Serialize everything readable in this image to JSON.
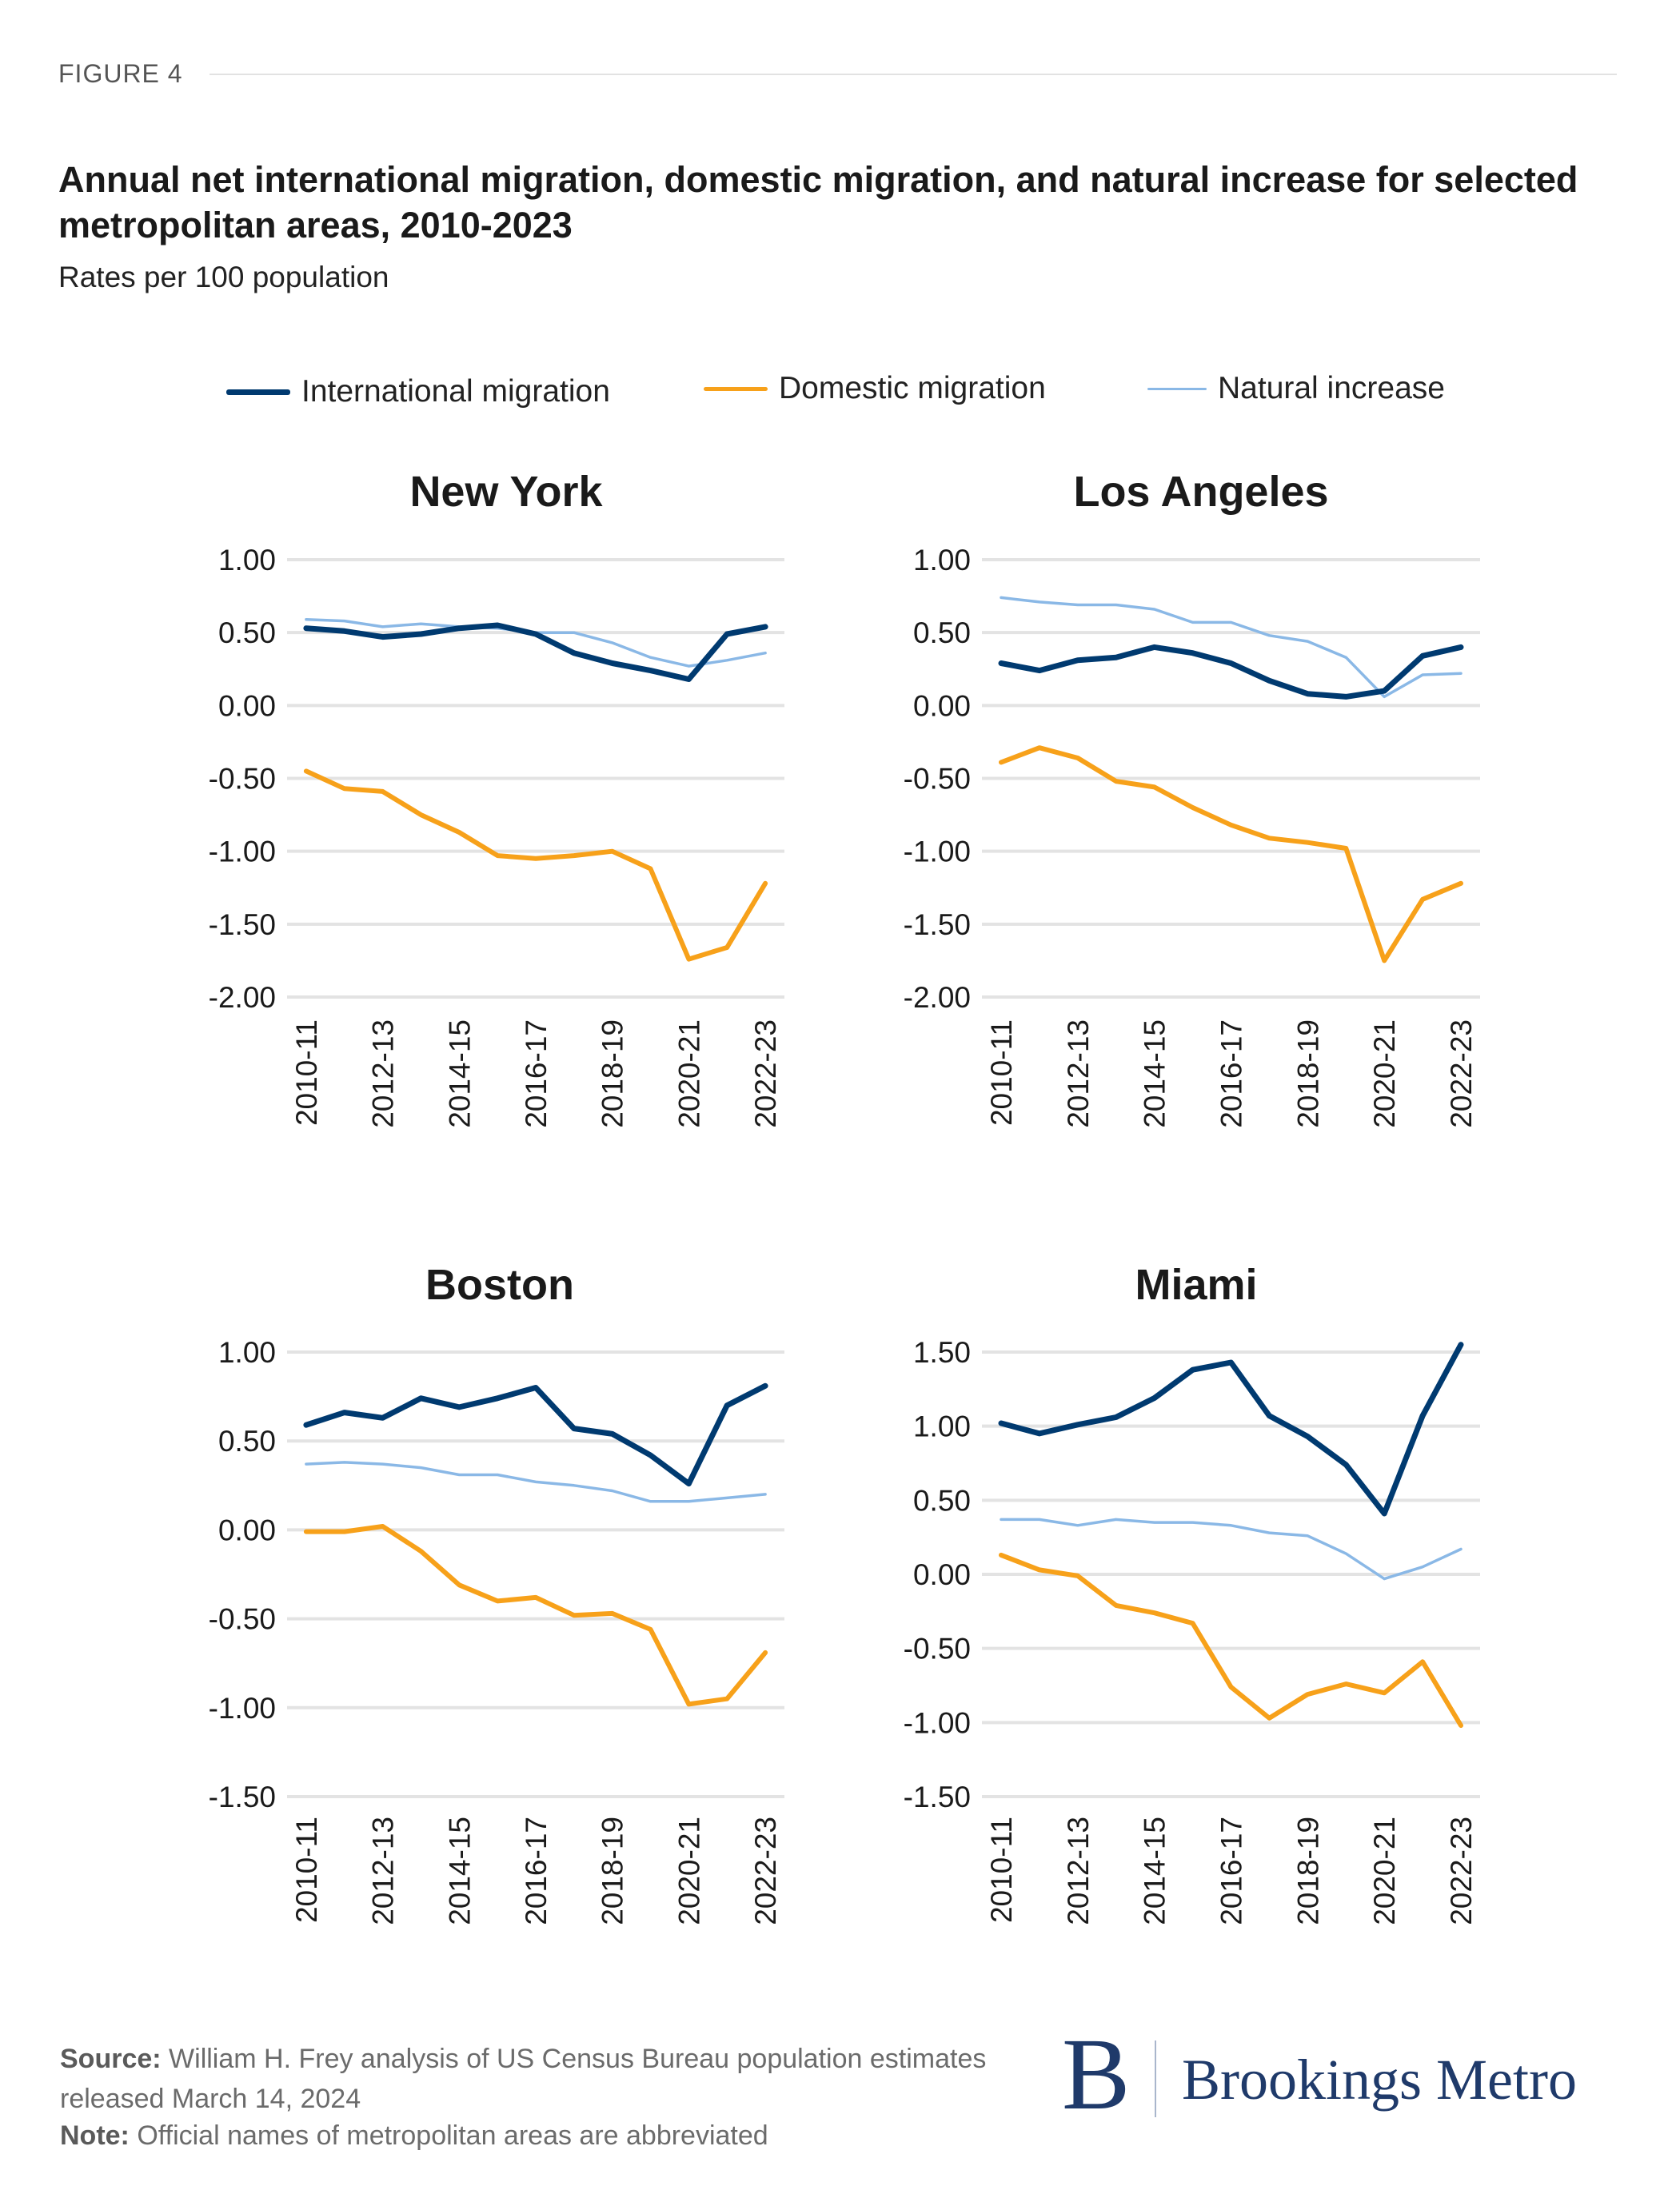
{
  "figure_label": "FIGURE 4",
  "title": "Annual net international migration, domestic migration, and natural increase for selected metropolitan areas, 2010-2023",
  "subtitle": "Rates per 100 population",
  "legend": [
    {
      "name": "International migration",
      "color": "#003a70"
    },
    {
      "name": "Domestic migration",
      "color": "#f7a11a"
    },
    {
      "name": "Natural increase",
      "color": "#8ab8e6"
    }
  ],
  "footer": {
    "source_label": "Source:",
    "source_text": "William H. Frey analysis of US Census Bureau population estimates released March 14, 2024",
    "note_label": "Note:",
    "note_text": "Official names of metropolitan areas are abbreviated"
  },
  "logo": {
    "mark": "B",
    "text": "Brookings Metro"
  },
  "chart_data": [
    {
      "type": "line",
      "title": "New York",
      "ylim": [
        -2,
        1
      ],
      "yticks": [
        "1.00",
        "0.50",
        "0.00",
        "-0.50",
        "-1.00",
        "-1.50",
        "-2.00"
      ],
      "grid": true,
      "x": [
        "2010-11",
        "2011-12",
        "2012-13",
        "2013-14",
        "2014-15",
        "2015-16",
        "2016-17",
        "2017-18",
        "2018-19",
        "2019-20",
        "2020-21",
        "2021-22",
        "2022-23"
      ],
      "x_tick_labels": [
        "2010-11",
        "2012-13",
        "2014-15",
        "2016-17",
        "2018-19",
        "2020-21",
        "2022-23"
      ],
      "series": [
        {
          "name": "International migration",
          "values": [
            0.53,
            0.51,
            0.47,
            0.49,
            0.53,
            0.55,
            0.49,
            0.36,
            0.29,
            0.24,
            0.18,
            0.49,
            0.54
          ]
        },
        {
          "name": "Domestic migration",
          "values": [
            -0.45,
            -0.57,
            -0.59,
            -0.75,
            -0.87,
            -1.03,
            -1.05,
            -1.03,
            -1.0,
            -1.12,
            -1.74,
            -1.66,
            -1.22
          ]
        },
        {
          "name": "Natural increase",
          "values": [
            0.59,
            0.58,
            0.54,
            0.56,
            0.54,
            0.53,
            0.5,
            0.5,
            0.43,
            0.33,
            0.27,
            0.31,
            0.36
          ]
        }
      ]
    },
    {
      "type": "line",
      "title": "Los Angeles",
      "ylim": [
        -2,
        1
      ],
      "yticks": [
        "1.00",
        "0.50",
        "0.00",
        "-0.50",
        "-1.00",
        "-1.50",
        "-2.00"
      ],
      "grid": true,
      "x": [
        "2010-11",
        "2011-12",
        "2012-13",
        "2013-14",
        "2014-15",
        "2015-16",
        "2016-17",
        "2017-18",
        "2018-19",
        "2019-20",
        "2020-21",
        "2021-22",
        "2022-23"
      ],
      "x_tick_labels": [
        "2010-11",
        "2012-13",
        "2014-15",
        "2016-17",
        "2018-19",
        "2020-21",
        "2022-23"
      ],
      "series": [
        {
          "name": "International migration",
          "values": [
            0.29,
            0.24,
            0.31,
            0.33,
            0.4,
            0.36,
            0.29,
            0.17,
            0.08,
            0.06,
            0.1,
            0.34,
            0.4
          ]
        },
        {
          "name": "Domestic migration",
          "values": [
            -0.39,
            -0.29,
            -0.36,
            -0.52,
            -0.56,
            -0.7,
            -0.82,
            -0.91,
            -0.94,
            -0.98,
            -1.75,
            -1.33,
            -1.22
          ]
        },
        {
          "name": "Natural increase",
          "values": [
            0.74,
            0.71,
            0.69,
            0.69,
            0.66,
            0.57,
            0.57,
            0.48,
            0.44,
            0.33,
            0.06,
            0.21,
            0.22
          ]
        }
      ]
    },
    {
      "type": "line",
      "title": "Boston",
      "ylim": [
        -1.5,
        1
      ],
      "yticks": [
        "1.00",
        "0.50",
        "0.00",
        "-0.50",
        "-1.00",
        "-1.50"
      ],
      "grid": true,
      "x": [
        "2010-11",
        "2011-12",
        "2012-13",
        "2013-14",
        "2014-15",
        "2015-16",
        "2016-17",
        "2017-18",
        "2018-19",
        "2019-20",
        "2020-21",
        "2021-22",
        "2022-23"
      ],
      "x_tick_labels": [
        "2010-11",
        "2012-13",
        "2014-15",
        "2016-17",
        "2018-19",
        "2020-21",
        "2022-23"
      ],
      "series": [
        {
          "name": "International migration",
          "values": [
            0.59,
            0.66,
            0.63,
            0.74,
            0.69,
            0.74,
            0.8,
            0.57,
            0.54,
            0.42,
            0.26,
            0.7,
            0.81
          ]
        },
        {
          "name": "Domestic migration",
          "values": [
            -0.01,
            -0.01,
            0.02,
            -0.12,
            -0.31,
            -0.4,
            -0.38,
            -0.48,
            -0.47,
            -0.56,
            -0.98,
            -0.95,
            -0.69
          ]
        },
        {
          "name": "Natural increase",
          "values": [
            0.37,
            0.38,
            0.37,
            0.35,
            0.31,
            0.31,
            0.27,
            0.25,
            0.22,
            0.16,
            0.16,
            0.18,
            0.2
          ]
        }
      ]
    },
    {
      "type": "line",
      "title": "Miami",
      "ylim": [
        -1.5,
        1.5
      ],
      "yticks": [
        "1.50",
        "1.00",
        "0.50",
        "0.00",
        "-0.50",
        "-1.00",
        "-1.50"
      ],
      "grid": true,
      "x": [
        "2010-11",
        "2011-12",
        "2012-13",
        "2013-14",
        "2014-15",
        "2015-16",
        "2016-17",
        "2017-18",
        "2018-19",
        "2019-20",
        "2020-21",
        "2021-22",
        "2022-23"
      ],
      "x_tick_labels": [
        "2010-11",
        "2012-13",
        "2014-15",
        "2016-17",
        "2018-19",
        "2020-21",
        "2022-23"
      ],
      "series": [
        {
          "name": "International migration",
          "values": [
            1.02,
            0.95,
            1.01,
            1.06,
            1.19,
            1.38,
            1.43,
            1.07,
            0.93,
            0.74,
            0.41,
            1.07,
            1.55
          ]
        },
        {
          "name": "Domestic migration",
          "values": [
            0.13,
            0.03,
            -0.01,
            -0.21,
            -0.26,
            -0.33,
            -0.76,
            -0.97,
            -0.81,
            -0.74,
            -0.8,
            -0.59,
            -1.02
          ]
        },
        {
          "name": "Natural increase",
          "values": [
            0.37,
            0.37,
            0.33,
            0.37,
            0.35,
            0.35,
            0.33,
            0.28,
            0.26,
            0.14,
            -0.03,
            0.05,
            0.17
          ]
        }
      ]
    }
  ]
}
